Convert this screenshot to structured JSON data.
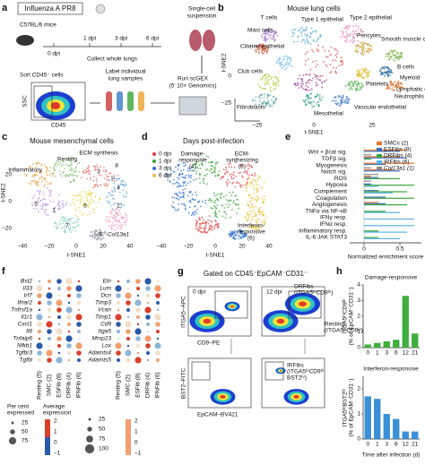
{
  "panel_a": {
    "letter": "a",
    "title": "Influenza A PR8",
    "mouse": "C57BL/6 mice",
    "days": [
      "0 dpi",
      "1 dpi",
      "3 dpi",
      "6 dpi"
    ],
    "collect": "Collect whole lungs",
    "suspension": [
      "Single-cell",
      "suspension"
    ],
    "sort": "Sort CD45⁻ cells",
    "ssc": "SSC",
    "cd45": "CD45",
    "label": [
      "Label individual",
      "lung samples"
    ],
    "run": [
      "Run scGEX",
      "(5′ 10× Genomics)"
    ]
  },
  "panel_b": {
    "letter": "b",
    "title": "Mouse lung cells",
    "clusters": [
      "T cells",
      "Type 1 epithelial",
      "Type 2 epithelial",
      "Mast cells",
      "Ciliated epithelial",
      "Pericytes",
      "Smooth muscle cells",
      "B cells",
      "Myeloid",
      "Club cells",
      "Platelets",
      "Lymphatic endothelial",
      "Neutrophils",
      "Fibroblasts",
      "Mesothelial",
      "Vascular endothelial"
    ],
    "x_label": "t-SNE1",
    "y_label": "t-SNE2",
    "xticks": [
      "−25",
      "0",
      "25"
    ],
    "yticks": [
      "0",
      "−25"
    ]
  },
  "panel_c": {
    "letter": "c",
    "title": "Mouse mesenchymal cells",
    "labels": [
      "Resting",
      "Inflammatory",
      "ECM synthesis",
      "Col13a1"
    ],
    "clusters": [
      "1",
      "2",
      "3",
      "4",
      "5",
      "6",
      "7",
      "8",
      "9"
    ],
    "x_label": "t-SNE1",
    "y_label": "t-SNE2",
    "xticks": [
      "−40",
      "−20",
      "0",
      "20",
      "40"
    ],
    "yticks": [
      "20",
      "0",
      "−20"
    ]
  },
  "panel_d": {
    "letter": "d",
    "title": "Days post-infection",
    "legend": [
      "0 dpi",
      "1 dpi",
      "3 dpi",
      "6 dpi"
    ],
    "damage": [
      "Damage-",
      "responsive",
      "(4)"
    ],
    "ecm": [
      "ECM-",
      "synthesizing",
      "(8)"
    ],
    "interferon": [
      "Interferon-",
      "responsive",
      "(6)"
    ],
    "x_label": "t-SNE1",
    "xticks": [
      "−40",
      "−20",
      "0",
      "20",
      "40"
    ]
  },
  "panel_e": {
    "letter": "e",
    "pathways": [
      "Wnt + βcat sig.",
      "TGFβ sig.",
      "Myogenesis",
      "Notch sig.",
      "ROS",
      "Hypoxia",
      "Complement",
      "Coagulation",
      "Angiogenesis",
      "TNFα via NF-κB",
      "IFNγ resp.",
      "IFNα resp.",
      "Inflammatory resp.",
      "IL-6 JAK STAT3"
    ],
    "series": [
      {
        "name": "SMCs (2)",
        "color": "#e8772e",
        "values": [
          0.6,
          0.5,
          0.7,
          0.4,
          0.1,
          0,
          0,
          0,
          0.2,
          0,
          0,
          0,
          0,
          0
        ]
      },
      {
        "name": "ESFibs (8)",
        "color": "#3b6fb6",
        "values": [
          0.5,
          0.6,
          0.3,
          0.5,
          0.2,
          0.1,
          0.2,
          0.3,
          0.3,
          0,
          0,
          0,
          0,
          0
        ]
      },
      {
        "name": "DRFibs (4)",
        "color": "#3aa53a",
        "values": [
          0,
          0.1,
          0,
          0,
          0.5,
          0.7,
          0.6,
          0.7,
          0.6,
          0.3,
          0,
          0,
          0.2,
          0.2
        ]
      },
      {
        "name": "IRFibs (6)",
        "color": "#59b4e0",
        "values": [
          0,
          0,
          0,
          0,
          0,
          0.2,
          0.4,
          0,
          0,
          0.5,
          0.7,
          0.7,
          0.6,
          0.5
        ]
      },
      {
        "name": "Col13a1 (1)",
        "color": "#888888",
        "values": [
          0.1,
          0,
          0.1,
          0.2,
          0.1,
          0,
          0,
          0,
          0,
          0,
          0,
          0,
          0,
          0
        ]
      }
    ],
    "xlim": [
      -0.2,
      0.8
    ],
    "xticks": [
      0,
      0.5
    ],
    "x_label": "Normalized enrichment score"
  },
  "panel_f": {
    "letter": "f",
    "genes_left": [
      "Bst2",
      "Il33",
      "Irf7",
      "Ifnar2",
      "Tnfrsf1a",
      "Il1r1",
      "Cxcl1",
      "Il6",
      "Tnfaip6",
      "Nfkb1",
      "Tgfbr3",
      "Tgfbi"
    ],
    "genes_right": [
      "Eln",
      "Lum",
      "Dcn",
      "Timp3",
      "Vcan",
      "Timp1",
      "Cd9",
      "Itga5",
      "Mmp23",
      "Lox",
      "Adamts4",
      "Adamts5"
    ],
    "columns": [
      "Resting (5)",
      "SMC (2)",
      "ESFib (8)",
      "DRFib (4)",
      "IFNFib (6)"
    ],
    "pct_title": [
      "Per cent",
      "expressed"
    ],
    "pct_left": [
      "25",
      "50",
      "75"
    ],
    "pct_right": [
      "25",
      "50",
      "75",
      "100"
    ],
    "avg_title": [
      "Average",
      "expression"
    ],
    "avg_ticks": [
      "2",
      "1",
      "0",
      "−1"
    ]
  },
  "panel_g": {
    "letter": "g",
    "title": "Gated on CD45⁻EpCAM⁻CD31⁻",
    "days": [
      "0 dpi",
      "12 dpi"
    ],
    "dr": [
      "DRFibs",
      "(ITGA5ʰⁱCD9ʰⁱ)"
    ],
    "resting": [
      "Resting",
      "(ITGA5ˡᵒCD9ˡᵒ)"
    ],
    "ir": [
      "IRFibs",
      "(ITGA5ʰⁱCD9ʰⁱ",
      "BST2ʰⁱ)"
    ],
    "itga5": "ITGA5–APC",
    "cd9": "CD9–PE",
    "bst2": "BST2–FITC",
    "epcam": "EpCAM–BV421"
  },
  "panel_h": {
    "letter": "h",
    "x_label": "Time after infection (d)",
    "charts": [
      {
        "title": "Damage-responsive",
        "y_label": [
          "ITGA5ʰⁱCD9ʰⁱ",
          "(% of EpCAM⁻CD31⁻)"
        ],
        "categories": [
          "0",
          "1",
          "3",
          "6",
          "12",
          "21"
        ],
        "values": [
          0.2,
          0.3,
          0.4,
          0.5,
          3.3,
          0.9
        ],
        "ylim": [
          0,
          4
        ],
        "yticks": [
          0,
          1,
          2,
          3,
          4
        ],
        "color": "#3fae3f"
      },
      {
        "title": "Interferon-responsive",
        "y_label": [
          "ITGA5ʰⁱBST2ʰⁱ",
          "(% of EpCAM⁻CD31⁻)"
        ],
        "categories": [
          "0",
          "1",
          "3",
          "6",
          "12",
          "21"
        ],
        "values": [
          1.7,
          1.6,
          1.0,
          0.8,
          0.3,
          0.3
        ],
        "ylim": [
          0,
          2.5
        ],
        "yticks": [
          0,
          1,
          2
        ],
        "color": "#3a8fd6"
      }
    ]
  }
}
